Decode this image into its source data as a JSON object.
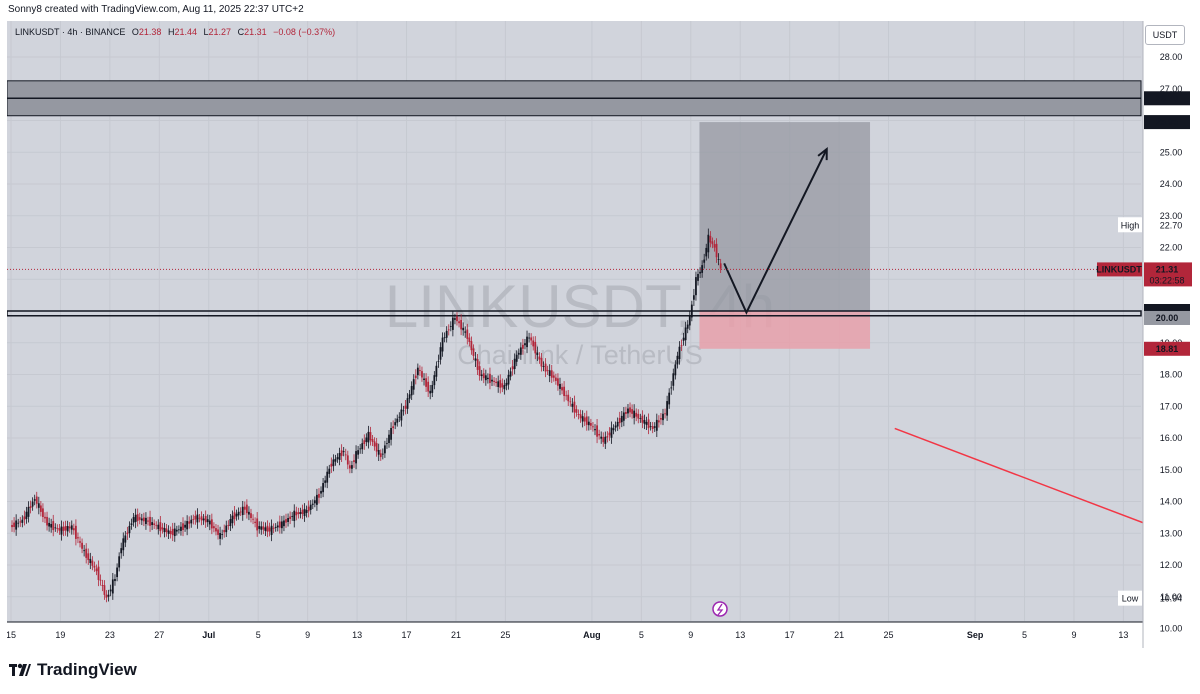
{
  "header": {
    "credit": "Sonny8 created with TradingView.com, Aug 11, 2025 22:37 UTC+2"
  },
  "legend": {
    "symbol_line": "LINKUSDT · 4h · BINANCE",
    "o_label": "O",
    "o": "21.38",
    "h_label": "H",
    "h": "21.44",
    "l_label": "L",
    "l": "21.27",
    "c_label": "C",
    "c": "21.31",
    "change": "−0.08 (−0.37%)"
  },
  "currency": "USDT",
  "watermark": {
    "main": "LINKUSDT, 4h",
    "sub": "Chainlink / TetherUS"
  },
  "price_labels": {
    "high_label": "High",
    "high_value": "22.70",
    "low_label": "Low",
    "low_value": "10.94",
    "symbol_tag": "LINKUSDT",
    "last_price": "21.31",
    "countdown": "03:22:58"
  },
  "brand": {
    "name": "TradingView"
  },
  "colors": {
    "up_candle": "#131722",
    "down_candle": "#b2263a",
    "bg": "#d1d4dc",
    "zone": "#9598a1",
    "stop_zone": "#e8a0aa",
    "trend_line": "#f23645"
  },
  "chart_data": {
    "type": "candlestick",
    "symbol": "LINKUSDT",
    "interval": "4h",
    "exchange": "BINANCE",
    "y_axis": {
      "min": 10.0,
      "max": 28.0,
      "ticks": [
        "28.00",
        "27.00",
        "26.00",
        "25.00",
        "24.00",
        "23.00",
        "22.00",
        "21.00",
        "20.00",
        "19.00",
        "18.00",
        "17.00",
        "16.00",
        "15.00",
        "14.00",
        "13.00",
        "12.00",
        "11.00",
        "10.00"
      ],
      "tick_values": [
        28,
        27,
        26,
        25,
        24,
        23,
        22,
        21,
        20,
        19,
        18,
        17,
        16,
        15,
        14,
        13,
        12,
        11,
        10
      ],
      "badges": [
        {
          "value": 26.7,
          "text": "26.70",
          "style": "dark"
        },
        {
          "value": 25.95,
          "text": "25.95",
          "style": "dark"
        },
        {
          "value": 20.0,
          "text": "20.00",
          "style": "dark"
        },
        {
          "value": 19.78,
          "text": "20.00",
          "style": "grey"
        },
        {
          "value": 18.81,
          "text": "18.81",
          "style": "red"
        }
      ]
    },
    "x_axis": {
      "labels": [
        "15",
        "19",
        "23",
        "27",
        "Jul",
        "5",
        "9",
        "13",
        "17",
        "21",
        "25",
        "Aug",
        "5",
        "9",
        "13",
        "17",
        "21",
        "25",
        "Sep",
        "5",
        "9",
        "13"
      ],
      "day_index": [
        0,
        4,
        8,
        12,
        16,
        20,
        24,
        28,
        32,
        36,
        40,
        47,
        51,
        55,
        59,
        63,
        67,
        71,
        78,
        82,
        86,
        90
      ],
      "bold": [
        "Jul",
        "Aug",
        "Sep"
      ]
    },
    "last_day_index": 57.5,
    "series": [
      {
        "d": 0,
        "p": 13.2
      },
      {
        "d": 1,
        "p": 13.4
      },
      {
        "d": 2,
        "p": 14.1
      },
      {
        "d": 3,
        "p": 13.3
      },
      {
        "d": 4,
        "p": 13.1
      },
      {
        "d": 5,
        "p": 13.2
      },
      {
        "d": 6,
        "p": 12.4
      },
      {
        "d": 7,
        "p": 11.8
      },
      {
        "d": 7.8,
        "p": 10.94
      },
      {
        "d": 8.5,
        "p": 11.6
      },
      {
        "d": 9,
        "p": 12.6
      },
      {
        "d": 10,
        "p": 13.5
      },
      {
        "d": 11,
        "p": 13.4
      },
      {
        "d": 12,
        "p": 13.2
      },
      {
        "d": 13,
        "p": 13.0
      },
      {
        "d": 14,
        "p": 13.2
      },
      {
        "d": 15,
        "p": 13.5
      },
      {
        "d": 16,
        "p": 13.4
      },
      {
        "d": 17,
        "p": 12.9
      },
      {
        "d": 18,
        "p": 13.5
      },
      {
        "d": 19,
        "p": 13.8
      },
      {
        "d": 20,
        "p": 13.2
      },
      {
        "d": 21,
        "p": 13.1
      },
      {
        "d": 22,
        "p": 13.3
      },
      {
        "d": 23,
        "p": 13.6
      },
      {
        "d": 24,
        "p": 13.7
      },
      {
        "d": 25,
        "p": 14.2
      },
      {
        "d": 26,
        "p": 15.2
      },
      {
        "d": 27,
        "p": 15.6
      },
      {
        "d": 27.5,
        "p": 15.0
      },
      {
        "d": 28,
        "p": 15.5
      },
      {
        "d": 29,
        "p": 16.1
      },
      {
        "d": 30,
        "p": 15.4
      },
      {
        "d": 31,
        "p": 16.4
      },
      {
        "d": 32,
        "p": 17.0
      },
      {
        "d": 33,
        "p": 18.2
      },
      {
        "d": 34,
        "p": 17.4
      },
      {
        "d": 35,
        "p": 19.1
      },
      {
        "d": 36,
        "p": 19.8
      },
      {
        "d": 37,
        "p": 19.2
      },
      {
        "d": 38,
        "p": 18.0
      },
      {
        "d": 39,
        "p": 17.8
      },
      {
        "d": 40,
        "p": 17.6
      },
      {
        "d": 41,
        "p": 18.6
      },
      {
        "d": 42,
        "p": 19.2
      },
      {
        "d": 43,
        "p": 18.3
      },
      {
        "d": 44,
        "p": 17.9
      },
      {
        "d": 45,
        "p": 17.3
      },
      {
        "d": 46,
        "p": 16.7
      },
      {
        "d": 47,
        "p": 16.4
      },
      {
        "d": 48,
        "p": 15.9
      },
      {
        "d": 49,
        "p": 16.4
      },
      {
        "d": 50,
        "p": 16.9
      },
      {
        "d": 51,
        "p": 16.6
      },
      {
        "d": 52,
        "p": 16.3
      },
      {
        "d": 53,
        "p": 16.8
      },
      {
        "d": 54,
        "p": 18.6
      },
      {
        "d": 55,
        "p": 19.8
      },
      {
        "d": 55.5,
        "p": 21.0
      },
      {
        "d": 56,
        "p": 21.4
      },
      {
        "d": 56.5,
        "p": 22.3
      },
      {
        "d": 57,
        "p": 22.0
      },
      {
        "d": 57.5,
        "p": 21.31
      }
    ],
    "drawings": {
      "resistance_zone": {
        "from": 26.15,
        "to": 27.25
      },
      "resistance_line": 26.7,
      "support_line_top": 20.0,
      "support_line_bottom": 19.85,
      "target_box": {
        "from_day": 55.7,
        "to_day": 69.5,
        "top": 25.95,
        "bottom": 20.0
      },
      "stop_box": {
        "from_day": 55.7,
        "to_day": 69.5,
        "top": 20.0,
        "bottom": 18.81
      },
      "path": [
        {
          "d": 57.7,
          "p": 21.5
        },
        {
          "d": 59.5,
          "p": 19.95
        },
        {
          "d": 66,
          "p": 25.1
        }
      ],
      "trend_line": {
        "from": {
          "d": 71.5,
          "p": 16.3
        },
        "to": {
          "d": 91.8,
          "p": 13.3
        }
      }
    }
  }
}
